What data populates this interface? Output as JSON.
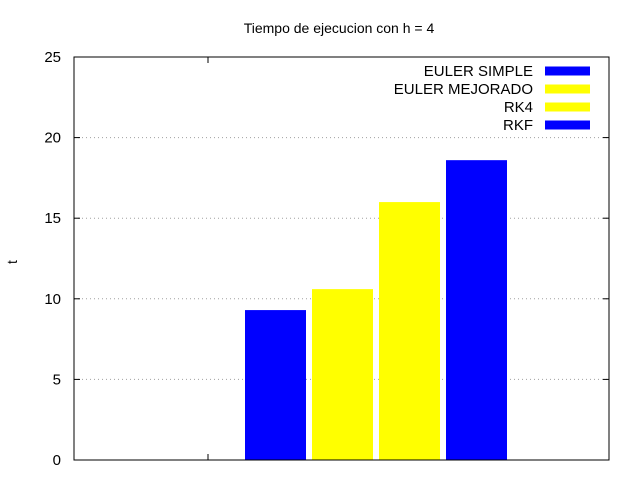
{
  "chart_data": {
    "type": "bar",
    "title": "Tiempo de ejecucion con h = 4",
    "xlabel": "",
    "ylabel": "t",
    "ylim": [
      0,
      25
    ],
    "yticks": [
      "0",
      "5",
      "10",
      "15",
      "20",
      "25"
    ],
    "grid": true,
    "legend_position": "top-right",
    "series": [
      {
        "name": "EULER SIMPLE",
        "value": 9.3,
        "color": "#0000ff"
      },
      {
        "name": "EULER MEJORADO",
        "value": 10.6,
        "color": "#ffff00"
      },
      {
        "name": "RK4",
        "value": 16.0,
        "color": "#ffff00"
      },
      {
        "name": "RKF",
        "value": 18.6,
        "color": "#0000ff"
      }
    ]
  }
}
